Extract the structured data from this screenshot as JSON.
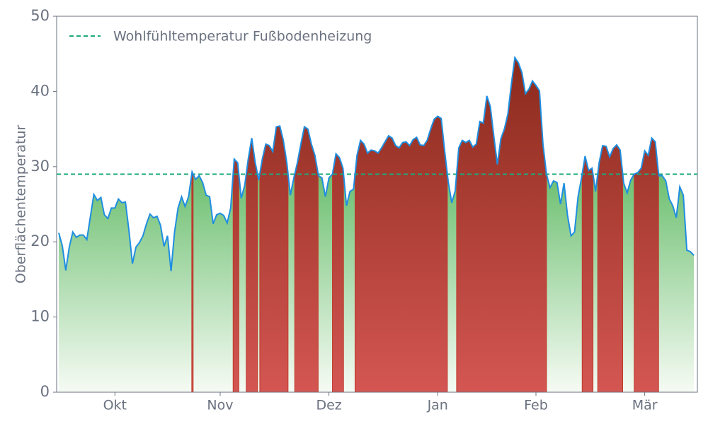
{
  "chart_data": {
    "type": "line",
    "ylabel": "Oberflächentemperatur",
    "categories": [
      null,
      null,
      null,
      null,
      null,
      null,
      null,
      null,
      null,
      null,
      null,
      null,
      null,
      null,
      null,
      null,
      "Okt",
      null,
      null,
      null,
      null,
      null,
      null,
      null,
      null,
      null,
      null,
      null,
      null,
      null,
      null,
      null,
      null,
      null,
      null,
      null,
      null,
      null,
      null,
      null,
      null,
      null,
      null,
      null,
      null,
      null,
      "Nov",
      null,
      null,
      null,
      null,
      null,
      null,
      null,
      null,
      null,
      null,
      null,
      null,
      null,
      null,
      null,
      null,
      null,
      null,
      null,
      null,
      null,
      null,
      null,
      null,
      null,
      null,
      null,
      null,
      null,
      null,
      "Dez",
      null,
      null,
      null,
      null,
      null,
      null,
      null,
      null,
      null,
      null,
      null,
      null,
      null,
      null,
      null,
      null,
      null,
      null,
      null,
      null,
      null,
      null,
      null,
      null,
      null,
      null,
      null,
      null,
      null,
      null,
      "Jan",
      null,
      null,
      null,
      null,
      null,
      null,
      null,
      null,
      null,
      null,
      null,
      null,
      null,
      null,
      null,
      null,
      null,
      null,
      null,
      null,
      null,
      null,
      null,
      null,
      null,
      null,
      null,
      "Feb",
      null,
      null,
      null,
      null,
      null,
      null,
      null,
      null,
      null,
      null,
      null,
      null,
      null,
      null,
      null,
      null,
      null,
      null,
      null,
      null,
      null,
      null,
      null,
      null,
      null,
      null,
      null,
      null,
      null,
      null,
      "Mär",
      null,
      null,
      null,
      null,
      null,
      null,
      null,
      null,
      null,
      null,
      null,
      null,
      null,
      null
    ],
    "series": [
      {
        "name": "Oberflächentemperatur",
        "color": "#1f8ee0",
        "values": [
          21.2,
          19.5,
          16.2,
          19.3,
          21.3,
          20.6,
          20.9,
          20.9,
          20.3,
          23.3,
          26.3,
          25.5,
          25.9,
          23.6,
          23.1,
          24.5,
          24.5,
          25.7,
          25.2,
          25.3,
          21.5,
          17.1,
          19.3,
          19.9,
          20.8,
          22.4,
          23.7,
          23.2,
          23.4,
          22.2,
          19.4,
          20.8,
          16.1,
          21.3,
          24.5,
          26.0,
          24.7,
          26.0,
          29.3,
          28.3,
          28.8,
          27.9,
          26.2,
          26.0,
          22.4,
          23.6,
          23.8,
          23.5,
          22.5,
          24.5,
          31.0,
          30.5,
          25.8,
          27.5,
          31.0,
          33.8,
          30.5,
          28.2,
          31.0,
          33.0,
          32.8,
          32.0,
          35.3,
          35.4,
          33.5,
          30.5,
          26.2,
          28.5,
          30.5,
          33.0,
          35.3,
          35.0,
          33.0,
          31.5,
          28.8,
          28.5,
          26.0,
          28.5,
          29.0,
          31.7,
          31.2,
          29.8,
          24.8,
          26.7,
          27.0,
          31.5,
          33.5,
          33.0,
          31.8,
          32.2,
          32.1,
          31.8,
          32.5,
          33.3,
          34.1,
          33.8,
          32.8,
          32.5,
          33.2,
          33.3,
          32.8,
          33.6,
          33.9,
          32.9,
          32.8,
          33.5,
          35.0,
          36.3,
          36.7,
          36.4,
          32.0,
          28.0,
          25.2,
          26.8,
          32.5,
          33.5,
          33.2,
          33.5,
          32.6,
          33.0,
          36.0,
          35.8,
          39.4,
          38.0,
          34.0,
          30.3,
          33.7,
          35.0,
          37.0,
          41.0,
          44.5,
          43.8,
          42.5,
          39.7,
          40.3,
          41.4,
          40.8,
          40.1,
          33.0,
          29.0,
          27.2,
          28.1,
          27.9,
          25.0,
          27.8,
          23.5,
          20.8,
          21.3,
          26.0,
          28.5,
          31.4,
          29.5,
          29.8,
          26.7,
          30.5,
          32.8,
          32.7,
          31.3,
          32.4,
          32.9,
          32.2,
          27.8,
          26.5,
          28.2,
          29.0,
          29.2,
          29.8,
          32.1,
          31.5,
          33.8,
          33.3,
          28.8,
          28.8,
          28.1,
          25.7,
          24.8,
          23.2,
          27.3,
          26.2,
          18.9,
          18.7,
          18.2
        ]
      }
    ],
    "threshold": {
      "name": "Wohlfühltemperatur Fußbodenheizung",
      "value": 29,
      "color": "#1aaa7a"
    },
    "above_color": "#c0392b",
    "below_color": "#6cbf70",
    "ylim": [
      0,
      50
    ],
    "yticks": [
      0,
      10,
      20,
      30,
      40,
      50
    ],
    "grid": false,
    "legend": "upper left"
  }
}
